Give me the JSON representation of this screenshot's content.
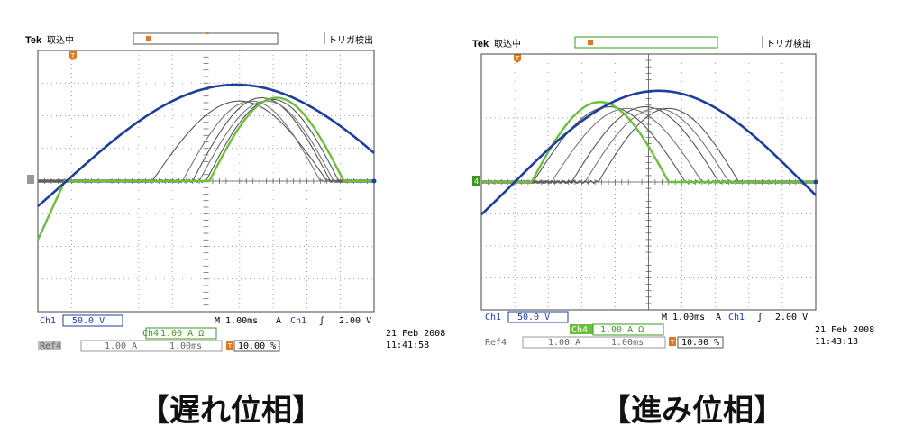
{
  "scopes": [
    {
      "caption": "【遅れ位相】",
      "header": {
        "brand": "Tek",
        "status": "取込中",
        "trigger_status": "トリガ検出"
      },
      "ground_marker": "",
      "ch1": {
        "label": "Ch1",
        "value": "50.0 V"
      },
      "ch4": {
        "label": "Ch4",
        "value": "1.00 A Ω"
      },
      "ref4": {
        "label": "Ref4",
        "value": "1.00 A",
        "time": "1.00ms"
      },
      "timebase": "M 1.00ms",
      "trigger": {
        "prefix": "A",
        "label": "Ch1",
        "slope": "ʃ",
        "level": "2.00 V"
      },
      "trigger_pos": {
        "marker": "T",
        "value": "10.00 %"
      },
      "date": "21 Feb 2008",
      "time": "11:41:58"
    },
    {
      "caption": "【進み位相】",
      "header": {
        "brand": "Tek",
        "status": "取込中",
        "trigger_status": "トリガ検出"
      },
      "ground_marker": "4",
      "ch1": {
        "label": "Ch1",
        "value": "50.0 V"
      },
      "ch4": {
        "label": "Ch4",
        "value": "1.00 A Ω"
      },
      "ref4": {
        "label": "Ref4",
        "value": "1.00 A",
        "time": "1.00ms"
      },
      "timebase": "M 1.00ms",
      "trigger": {
        "prefix": "A",
        "label": "Ch1",
        "slope": "ʃ",
        "level": "2.00 V"
      },
      "trigger_pos": {
        "marker": "T",
        "value": "10.00 %"
      },
      "date": "21 Feb 2008",
      "time": "11:43:13"
    }
  ],
  "chart_data": [
    {
      "type": "line",
      "x_unit": "div",
      "y_unit": "div",
      "xlim": [
        0,
        10
      ],
      "ylim": [
        -4,
        4
      ],
      "grid": true,
      "series": [
        {
          "name": "Ch1",
          "color": "#1f3d9a",
          "kind": "sine",
          "amplitude": 2.95,
          "start": 0.85,
          "end": 10.95,
          "end_x": 10
        },
        {
          "name": "Ch4",
          "color": "#6cbf3c",
          "kind": "pulse",
          "start": 5.1,
          "end": 9.1,
          "peak": 2.55,
          "pre_dip": true
        },
        {
          "name": "Ref4",
          "color": "#555555",
          "kind": "pulse",
          "start": 3.4,
          "end": 8.6,
          "peak": 2.45
        },
        {
          "name": "Ref4",
          "color": "#777777",
          "kind": "pulse",
          "start": 4.3,
          "end": 8.4,
          "peak": 2.45
        },
        {
          "name": "Ref4",
          "color": "#555555",
          "kind": "pulse",
          "start": 4.6,
          "end": 8.7,
          "peak": 2.55
        },
        {
          "name": "Ref4",
          "color": "#777777",
          "kind": "pulse",
          "start": 4.8,
          "end": 8.8,
          "peak": 2.45
        },
        {
          "name": "Ref4",
          "color": "#555555",
          "kind": "pulse",
          "start": 5.0,
          "end": 8.95,
          "peak": 2.5
        }
      ]
    },
    {
      "type": "line",
      "x_unit": "div",
      "y_unit": "div",
      "xlim": [
        0,
        10
      ],
      "ylim": [
        -4,
        4
      ],
      "grid": true,
      "series": [
        {
          "name": "Ch1",
          "color": "#1f3d9a",
          "kind": "sine",
          "amplitude": 2.85,
          "start": 1.0,
          "end": 9.6,
          "end_x": 10
        },
        {
          "name": "Ch4",
          "color": "#6cbf3c",
          "kind": "pulse",
          "start": 1.5,
          "end": 5.6,
          "peak": 2.5
        },
        {
          "name": "Ref4",
          "color": "#555555",
          "kind": "pulse",
          "start": 1.55,
          "end": 6.1,
          "peak": 2.35
        },
        {
          "name": "Ref4",
          "color": "#777777",
          "kind": "pulse",
          "start": 2.1,
          "end": 6.6,
          "peak": 2.3
        },
        {
          "name": "Ref4",
          "color": "#555555",
          "kind": "pulse",
          "start": 2.7,
          "end": 7.1,
          "peak": 2.35
        },
        {
          "name": "Ref4",
          "color": "#777777",
          "kind": "pulse",
          "start": 3.1,
          "end": 7.4,
          "peak": 2.3
        },
        {
          "name": "Ref4",
          "color": "#555555",
          "kind": "pulse",
          "start": 3.5,
          "end": 7.7,
          "peak": 2.3
        }
      ]
    }
  ]
}
